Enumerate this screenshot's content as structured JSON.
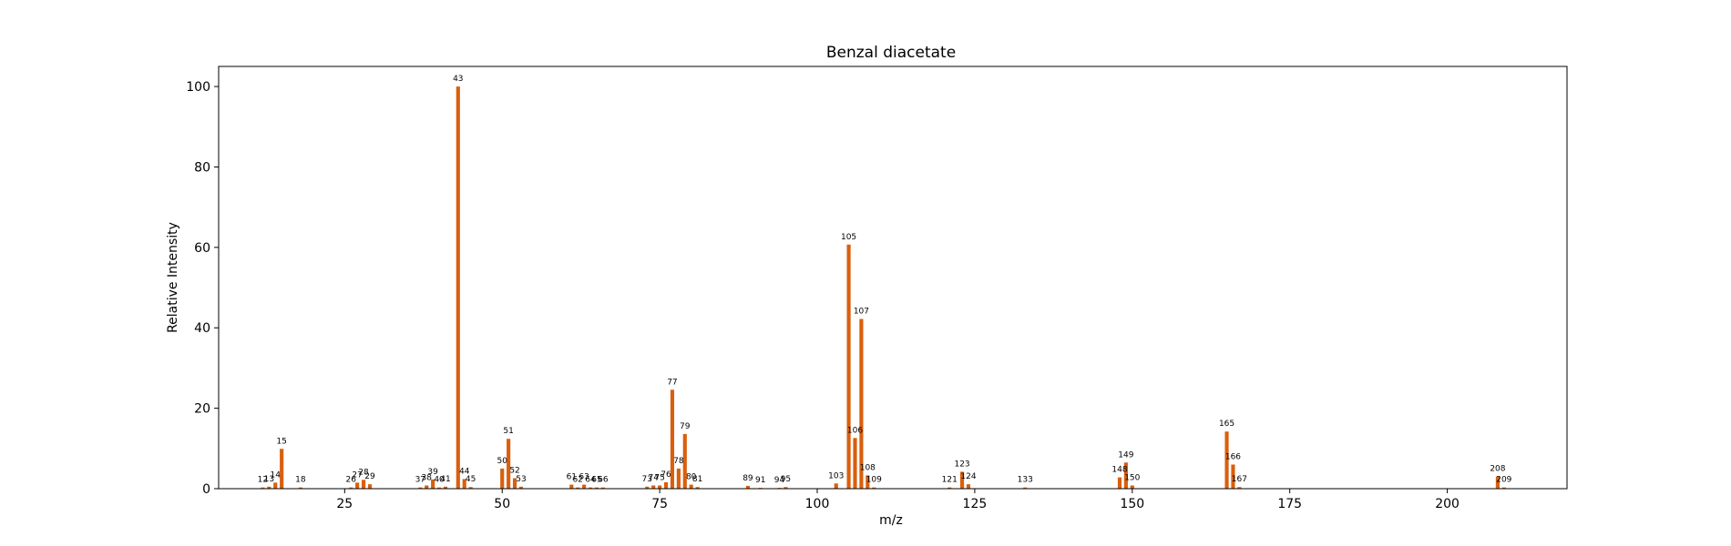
{
  "chart_data": {
    "type": "bar",
    "title": "Benzal diacetate",
    "xlabel": "m/z",
    "ylabel": "Relative Intensity",
    "xlim": [
      5,
      219
    ],
    "ylim": [
      0,
      105
    ],
    "xticks": [
      25,
      50,
      75,
      100,
      125,
      150,
      175,
      200
    ],
    "yticks": [
      0,
      20,
      40,
      60,
      80,
      100
    ],
    "grid": false,
    "bar_color": "#d95f0e",
    "series": [
      {
        "x": [
          12,
          13,
          14,
          15,
          18,
          26,
          27,
          28,
          29,
          37,
          38,
          39,
          40,
          41,
          43,
          44,
          45,
          50,
          51,
          52,
          53,
          61,
          62,
          63,
          64,
          65,
          66,
          73,
          74,
          75,
          76,
          77,
          78,
          79,
          80,
          81,
          89,
          91,
          94,
          95,
          103,
          105,
          106,
          107,
          108,
          109,
          121,
          123,
          124,
          133,
          148,
          149,
          150,
          165,
          166,
          167,
          208,
          209
        ],
        "values": [
          0.3,
          0.5,
          1.5,
          9.9,
          0.3,
          0.3,
          1.5,
          2.2,
          1.1,
          0.3,
          0.8,
          2.3,
          0.3,
          0.5,
          100,
          2.4,
          0.4,
          5.0,
          12.4,
          2.6,
          0.5,
          1.0,
          0.3,
          1.0,
          0.3,
          0.3,
          0.3,
          0.5,
          0.8,
          0.8,
          1.6,
          24.6,
          5.0,
          13.6,
          1.0,
          0.4,
          0.7,
          0.2,
          0.2,
          0.4,
          1.3,
          60.7,
          12.6,
          42.2,
          3.3,
          0.3,
          0.3,
          4.2,
          1.1,
          0.3,
          2.8,
          6.5,
          0.8,
          14.2,
          6.0,
          0.4,
          3.0,
          0.3
        ]
      }
    ]
  }
}
